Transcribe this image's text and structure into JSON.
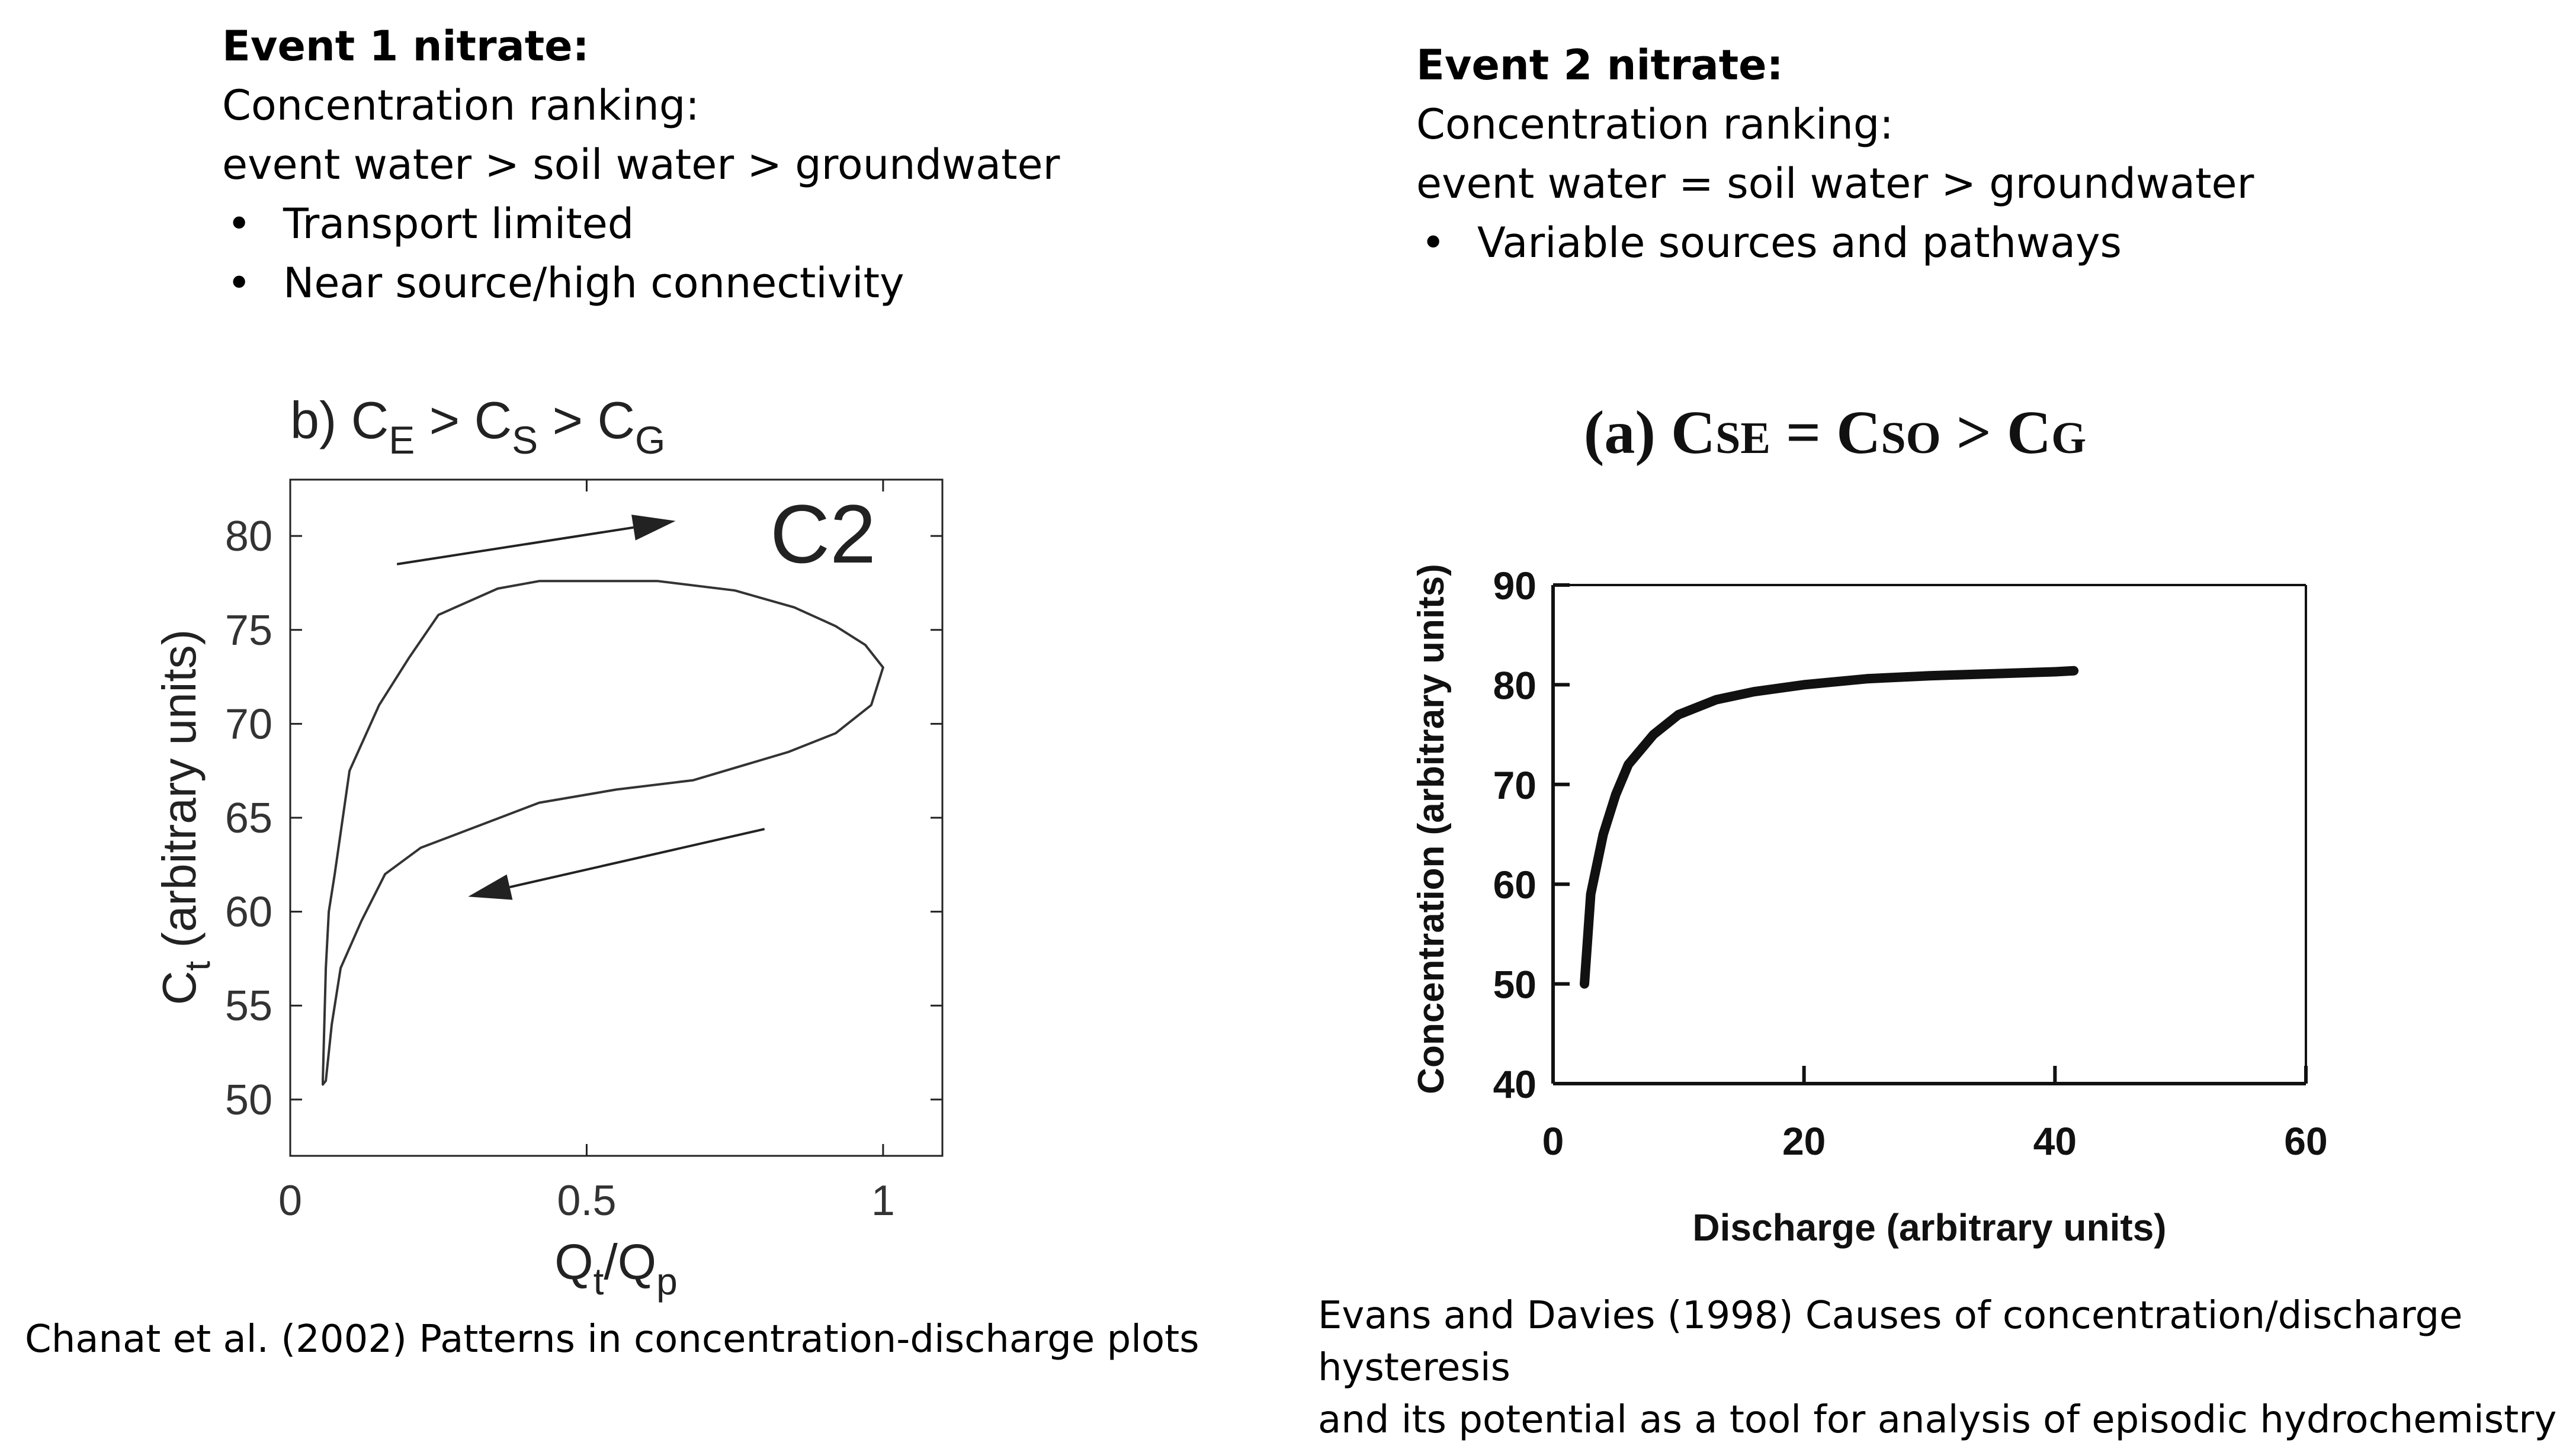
{
  "event1": {
    "heading": "Event 1 nitrate:",
    "line1": "Concentration ranking:",
    "line2": "event water > soil water > groundwater",
    "bullets": [
      "Transport limited",
      "Near source/high connectivity"
    ]
  },
  "event2": {
    "heading": "Event 2 nitrate:",
    "line1": "Concentration ranking:",
    "line2": "event water = soil water > groundwater",
    "bullets": [
      "Variable sources and pathways"
    ]
  },
  "captions": {
    "left": "Chanat et al. (2002) Patterns in concentration-discharge plots",
    "right_line1": "Evans and Davies (1998) Causes of concentration/discharge hysteresis",
    "right_line2": "and its potential as a tool for analysis of episodic hydrochemistry"
  },
  "chart_data": [
    {
      "type": "line",
      "title": "b) C",
      "title_parts": [
        "b) C",
        "E",
        " > C",
        "S",
        " > C",
        "G"
      ],
      "annotation": "C2",
      "xlabel_parts": [
        "Q",
        "t",
        "/Q",
        "p"
      ],
      "ylabel_parts": [
        "C",
        "t",
        " (arbitrary units)"
      ],
      "xlim": [
        0,
        1.1
      ],
      "ylim": [
        47,
        83
      ],
      "xticks": [
        0,
        0.5,
        1
      ],
      "xtick_labels": [
        "0",
        "0.5",
        "1"
      ],
      "yticks": [
        50,
        55,
        60,
        65,
        70,
        75,
        80
      ],
      "ytick_labels": [
        "50",
        "55",
        "60",
        "65",
        "70",
        "75",
        "80"
      ],
      "grid": false,
      "series": [
        {
          "x": [
            0.055,
            0.06,
            0.065,
            0.075,
            0.1,
            0.15,
            0.2,
            0.25,
            0.35,
            0.42,
            0.5,
            0.62,
            0.75,
            0.85,
            0.92,
            0.97,
            1.0,
            0.98,
            0.92,
            0.84,
            0.68,
            0.55,
            0.42,
            0.32,
            0.22,
            0.16,
            0.12,
            0.085,
            0.07,
            0.06,
            0.055
          ],
          "y": [
            51,
            57,
            60,
            62,
            67.5,
            71,
            73.5,
            75.8,
            77.2,
            77.6,
            77.6,
            77.6,
            77.1,
            76.2,
            75.2,
            74.2,
            73,
            71,
            69.5,
            68.5,
            67,
            66.5,
            65.8,
            64.6,
            63.4,
            62,
            59.5,
            57,
            54,
            51,
            50.8
          ]
        }
      ],
      "arrows": [
        {
          "from": [
            0.18,
            78.5
          ],
          "to": [
            0.65,
            80.8
          ]
        },
        {
          "from": [
            0.8,
            64.4
          ],
          "to": [
            0.3,
            60.8
          ]
        }
      ]
    },
    {
      "type": "line",
      "title_parts": [
        "(a) C",
        "SE",
        " = C",
        "SO",
        " > C",
        "G"
      ],
      "xlabel": "Discharge (arbitrary units)",
      "ylabel": "Concentration (arbitrary units)",
      "xlim": [
        0,
        60
      ],
      "ylim": [
        40,
        90
      ],
      "xticks": [
        0,
        20,
        40,
        60
      ],
      "xtick_labels": [
        "0",
        "20",
        "40",
        "60"
      ],
      "yticks": [
        40,
        50,
        60,
        70,
        80,
        90
      ],
      "ytick_labels": [
        "40",
        "50",
        "60",
        "70",
        "80",
        "90"
      ],
      "grid": false,
      "series": [
        {
          "x": [
            2.5,
            3,
            4,
            5,
            6,
            8,
            10,
            13,
            16,
            20,
            25,
            30,
            35,
            40,
            41.5
          ],
          "y": [
            50,
            59,
            65,
            69,
            72,
            75,
            77,
            78.5,
            79.3,
            80,
            80.6,
            80.9,
            81.1,
            81.3,
            81.4
          ]
        }
      ]
    }
  ]
}
